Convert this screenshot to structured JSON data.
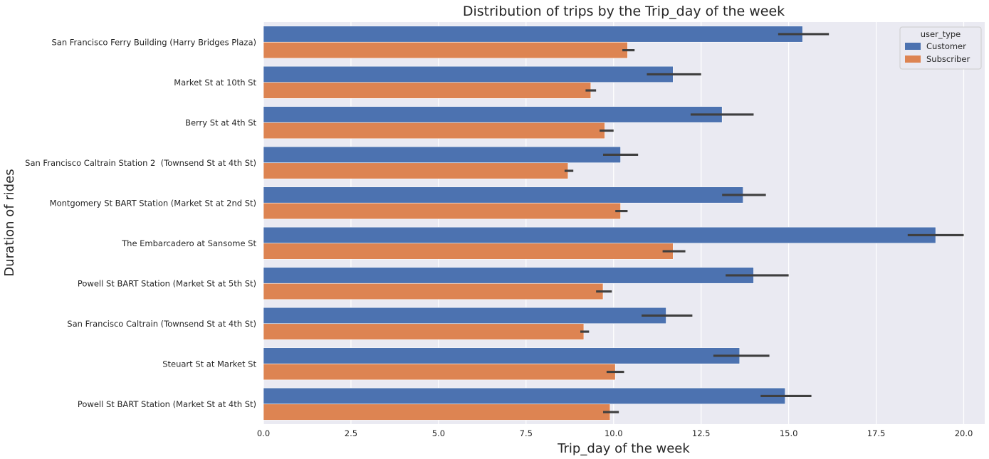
{
  "chart_data": {
    "type": "bar",
    "orientation": "horizontal",
    "title": "Distribution of trips by the Trip_day of the week",
    "xlabel": "Trip_day of the week",
    "ylabel": "Duration of rides",
    "xlim": [
      0,
      20.6
    ],
    "xticks": [
      0.0,
      2.5,
      5.0,
      7.5,
      10.0,
      12.5,
      15.0,
      17.5,
      20.0
    ],
    "xtick_labels": [
      "0.0",
      "2.5",
      "5.0",
      "7.5",
      "10.0",
      "12.5",
      "15.0",
      "17.5",
      "20.0"
    ],
    "grid": true,
    "categories": [
      "San Francisco Ferry Building (Harry Bridges Plaza)",
      "Market St at 10th St",
      "Berry St at 4th St",
      "San Francisco Caltrain Station 2  (Townsend St at 4th St)",
      "Montgomery St BART Station (Market St at 2nd St)",
      "The Embarcadero at Sansome St",
      "Powell St BART Station (Market St at 5th St)",
      "San Francisco Caltrain (Townsend St at 4th St)",
      "Steuart St at Market St",
      "Powell St BART Station (Market St at 4th St)"
    ],
    "series": [
      {
        "name": "Customer",
        "color": "#4c72b0",
        "values": [
          15.4,
          11.7,
          13.1,
          10.2,
          13.7,
          19.2,
          14.0,
          11.5,
          13.6,
          14.9
        ],
        "ci_low": [
          14.7,
          10.95,
          12.2,
          9.7,
          13.1,
          18.4,
          13.2,
          10.8,
          12.85,
          14.2
        ],
        "ci_high": [
          16.15,
          12.5,
          14.0,
          10.7,
          14.35,
          20.0,
          15.0,
          12.25,
          14.45,
          15.65
        ]
      },
      {
        "name": "Subscriber",
        "color": "#dd8452",
        "values": [
          10.4,
          9.35,
          9.75,
          8.7,
          10.2,
          11.7,
          9.7,
          9.15,
          10.05,
          9.9
        ],
        "ci_low": [
          10.25,
          9.2,
          9.6,
          8.6,
          10.05,
          11.4,
          9.5,
          9.05,
          9.8,
          9.7
        ],
        "ci_high": [
          10.6,
          9.5,
          10.0,
          8.85,
          10.4,
          12.05,
          9.95,
          9.3,
          10.3,
          10.15
        ]
      }
    ],
    "legend": {
      "title": "user_type",
      "placement": "top-right",
      "entries": [
        "Customer",
        "Subscriber"
      ]
    },
    "background_color": "#eaeaf2",
    "grid_color": "#ffffff",
    "errorbar_color": "#3f3f3f"
  }
}
